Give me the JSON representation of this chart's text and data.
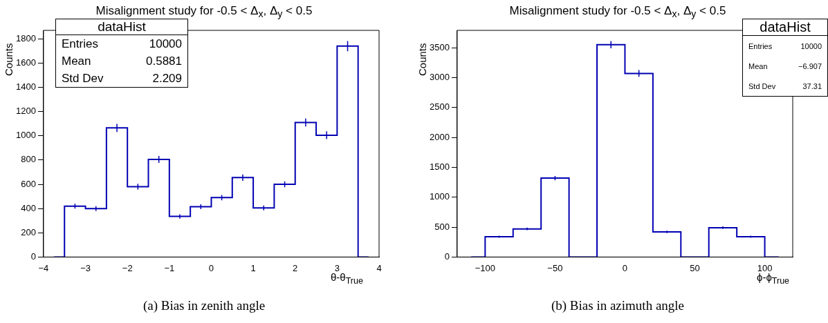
{
  "chart_data": [
    {
      "type": "step",
      "title": "Misalignment study for -0.5 < Δ$_{x}$, Δ$_{y}$ < 0.5",
      "xlabel": "θ-θ$_{True}$",
      "ylabel": "Counts",
      "x": [
        -3.75,
        -3.25,
        -2.75,
        -2.25,
        -1.75,
        -1.25,
        -0.75,
        -0.25,
        0.25,
        0.75,
        1.25,
        1.75,
        2.25,
        2.75,
        3.25,
        3.75
      ],
      "values": [
        0,
        420,
        400,
        1065,
        580,
        805,
        335,
        415,
        490,
        655,
        405,
        600,
        1110,
        1005,
        1740,
        0
      ],
      "errors": [
        null,
        20,
        20,
        33,
        24,
        28,
        18,
        20,
        22,
        26,
        20,
        24,
        33,
        32,
        42,
        null
      ],
      "color": "#0000b3",
      "xlim": [
        -4,
        4
      ],
      "xticks": [
        {
          "value": -4,
          "label": "−4"
        },
        {
          "value": -3,
          "label": "−3"
        },
        {
          "value": -2,
          "label": "−2"
        },
        {
          "value": -1,
          "label": "−1"
        },
        0,
        1,
        2,
        3,
        4
      ],
      "ylim": [
        0,
        1870
      ],
      "yticks": [
        0,
        200,
        400,
        600,
        800,
        1000,
        1200,
        1400,
        1600,
        1800
      ],
      "grid": false,
      "legend": false,
      "annotations": [
        "dataHist",
        "Entries",
        "10000",
        "Mean",
        "0.5881",
        "Std Dev",
        "2.209",
        "(a) Bias in zenith angle"
      ]
    },
    {
      "type": "step",
      "title": "Misalignment study for -0.5 < Δ$_{x}$, Δ$_{y}$ < 0.5",
      "xlabel": "ϕ-ϕ$_{True}$",
      "ylabel": "Counts",
      "x": [
        -110,
        -90,
        -70,
        -50,
        -30,
        -10,
        10,
        30,
        50,
        70,
        90,
        110
      ],
      "values": [
        0,
        340,
        470,
        1320,
        0,
        3550,
        3070,
        420,
        0,
        490,
        340,
        0
      ],
      "errors": [
        null,
        18,
        22,
        36,
        null,
        60,
        55,
        21,
        null,
        22,
        18,
        null
      ],
      "color": "#0000b3",
      "xlim": [
        -120,
        120
      ],
      "xticks": [
        {
          "value": -100,
          "label": "−100"
        },
        {
          "value": -50,
          "label": "−50"
        },
        0,
        50,
        100
      ],
      "ylim": [
        0,
        3790
      ],
      "yticks": [
        0,
        500,
        1000,
        1500,
        2000,
        2500,
        3000,
        3500
      ],
      "grid": false,
      "legend": false,
      "annotations": [
        "dataHist",
        "Entries",
        "10000",
        "Mean",
        "−6.907",
        "Std Dev",
        "37.31",
        "(b) Bias in azimuth angle"
      ]
    }
  ]
}
